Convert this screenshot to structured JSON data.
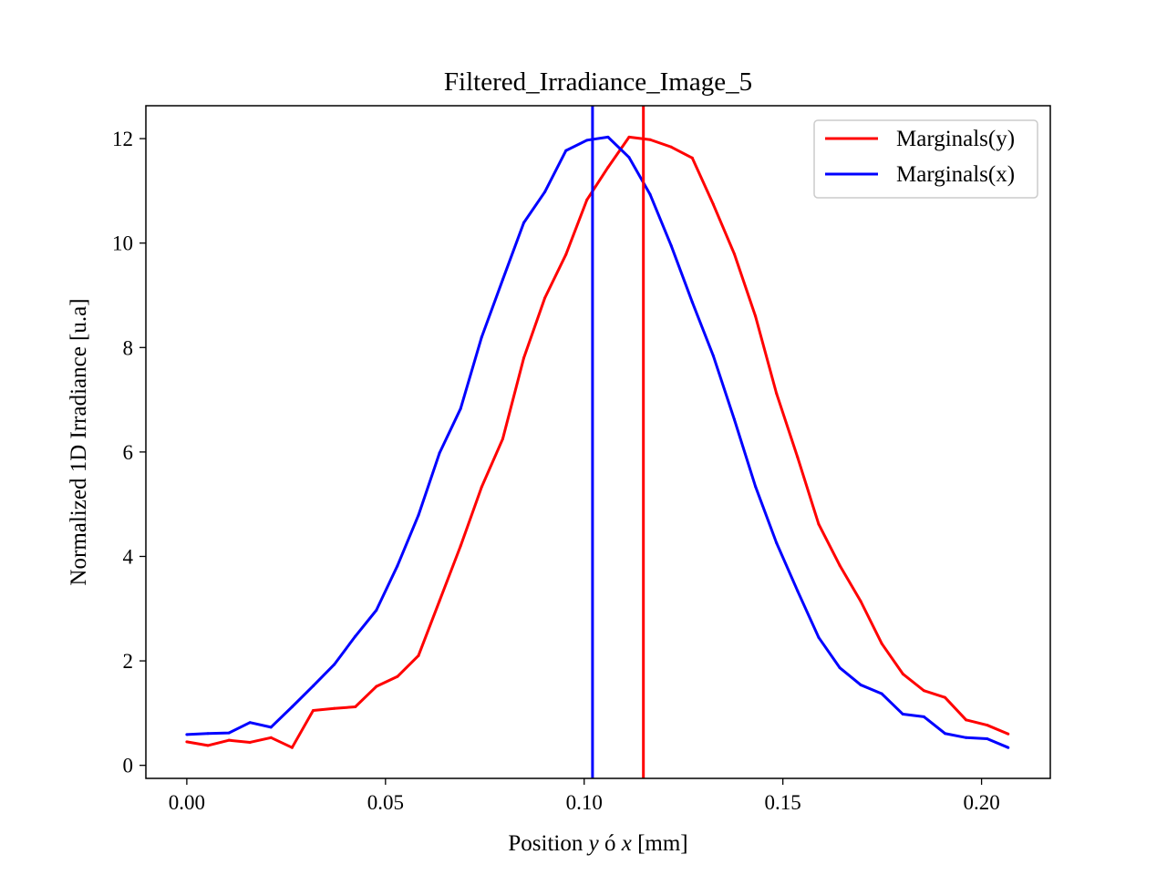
{
  "chart_data": {
    "type": "line",
    "title": "Filtered_Irradiance_Image_5",
    "xlabel_parts": [
      "Position ",
      "y",
      " ó ",
      "x",
      " [mm]"
    ],
    "ylabel": "Normalized 1D Irradiance [u.a]",
    "xlim": [
      -0.0103,
      0.2173
    ],
    "ylim": [
      -0.25,
      12.63
    ],
    "xticks": [
      0.0,
      0.05,
      0.1,
      0.15,
      0.2
    ],
    "xtick_labels": [
      "0.00",
      "0.05",
      "0.10",
      "0.15",
      "0.20"
    ],
    "yticks": [
      0,
      2,
      4,
      6,
      8,
      10,
      12
    ],
    "ytick_labels": [
      "0",
      "2",
      "4",
      "6",
      "8",
      "10",
      "12"
    ],
    "grid": false,
    "legend_position": "upper right",
    "x": [
      0.0,
      0.0053,
      0.0106,
      0.0159,
      0.0212,
      0.0265,
      0.0318,
      0.0371,
      0.0424,
      0.0477,
      0.053,
      0.0583,
      0.0636,
      0.0689,
      0.0742,
      0.0795,
      0.0848,
      0.0901,
      0.0954,
      0.1007,
      0.106,
      0.1113,
      0.1166,
      0.1219,
      0.1272,
      0.1325,
      0.1378,
      0.1431,
      0.1484,
      0.1537,
      0.159,
      0.1643,
      0.1696,
      0.1749,
      0.1802,
      0.1855,
      0.1908,
      0.1961,
      0.2014,
      0.2067
    ],
    "series": [
      {
        "name": "Marginals(y)",
        "color": "#ff0000",
        "values": [
          0.45,
          0.38,
          0.48,
          0.44,
          0.53,
          0.34,
          1.05,
          1.09,
          1.12,
          1.51,
          1.7,
          2.1,
          3.15,
          4.2,
          5.33,
          6.25,
          7.8,
          8.95,
          9.78,
          10.83,
          11.45,
          12.03,
          11.98,
          11.84,
          11.63,
          10.74,
          9.79,
          8.6,
          7.12,
          5.9,
          4.62,
          3.83,
          3.14,
          2.33,
          1.75,
          1.43,
          1.3,
          0.87,
          0.77,
          0.6
        ],
        "vline": 0.1149
      },
      {
        "name": "Marginals(x)",
        "color": "#0000ff",
        "values": [
          0.59,
          0.61,
          0.62,
          0.82,
          0.73,
          1.12,
          1.52,
          1.93,
          2.47,
          2.97,
          3.82,
          4.79,
          5.98,
          6.83,
          8.2,
          9.3,
          10.39,
          10.98,
          11.77,
          11.97,
          12.03,
          11.64,
          10.93,
          9.95,
          8.87,
          7.84,
          6.62,
          5.34,
          4.26,
          3.34,
          2.45,
          1.87,
          1.54,
          1.37,
          0.98,
          0.93,
          0.61,
          0.53,
          0.51,
          0.34
        ],
        "vline": 0.1021
      }
    ]
  }
}
